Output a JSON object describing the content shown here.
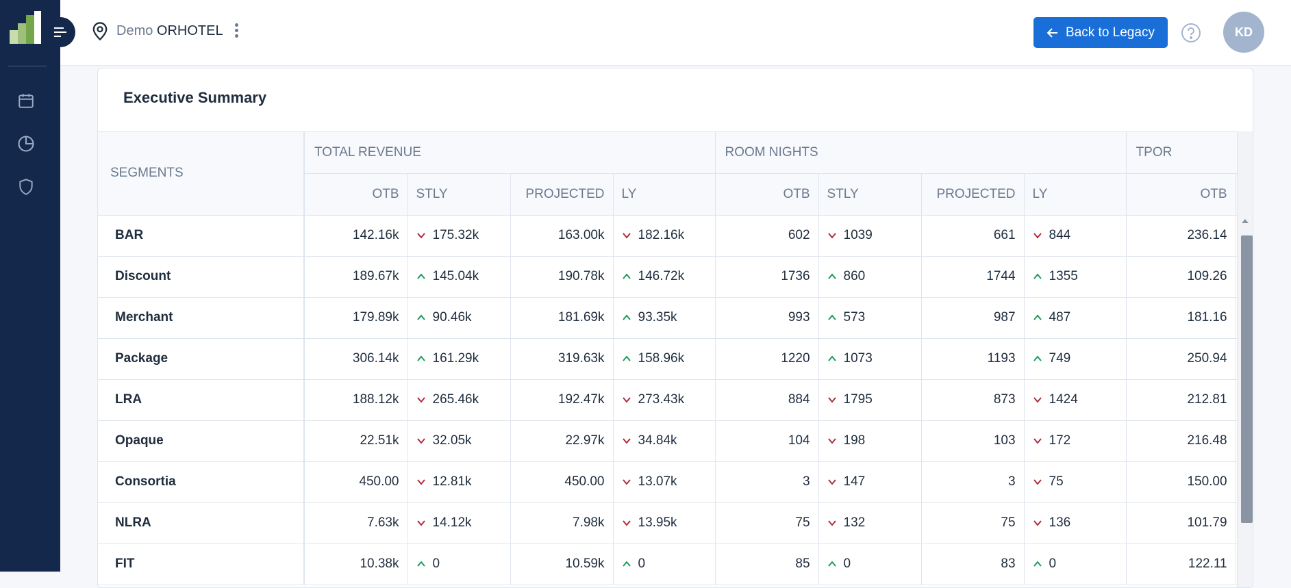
{
  "header": {
    "hotel_prefix": "Demo",
    "hotel_name": "ORHOTEL",
    "back_button_label": "Back to Legacy",
    "user_initials": "KD"
  },
  "sidebar": {
    "items": [
      {
        "icon": "calendar-icon"
      },
      {
        "icon": "pie-chart-icon"
      },
      {
        "icon": "shield-icon"
      }
    ]
  },
  "summary": {
    "title": "Executive Summary",
    "segments_header": "SEGMENTS",
    "groups": [
      "TOTAL REVENUE",
      "ROOM NIGHTS",
      "TPOR"
    ],
    "columns": [
      "OTB",
      "STLY",
      "PROJECTED",
      "LY",
      "OTB",
      "STLY",
      "PROJECTED",
      "LY",
      "OTB"
    ],
    "rows": [
      {
        "segment": "BAR",
        "rev_otb": "142.16k",
        "rev_stly": "175.32k",
        "rev_stly_dir": "down",
        "rev_proj": "163.00k",
        "rev_ly": "182.16k",
        "rev_ly_dir": "down",
        "rn_otb": "602",
        "rn_stly": "1039",
        "rn_stly_dir": "down",
        "rn_proj": "661",
        "rn_ly": "844",
        "rn_ly_dir": "down",
        "tpor_otb": "236.14"
      },
      {
        "segment": "Discount",
        "rev_otb": "189.67k",
        "rev_stly": "145.04k",
        "rev_stly_dir": "up",
        "rev_proj": "190.78k",
        "rev_ly": "146.72k",
        "rev_ly_dir": "up",
        "rn_otb": "1736",
        "rn_stly": "860",
        "rn_stly_dir": "up",
        "rn_proj": "1744",
        "rn_ly": "1355",
        "rn_ly_dir": "up",
        "tpor_otb": "109.26"
      },
      {
        "segment": "Merchant",
        "rev_otb": "179.89k",
        "rev_stly": "90.46k",
        "rev_stly_dir": "up",
        "rev_proj": "181.69k",
        "rev_ly": "93.35k",
        "rev_ly_dir": "up",
        "rn_otb": "993",
        "rn_stly": "573",
        "rn_stly_dir": "up",
        "rn_proj": "987",
        "rn_ly": "487",
        "rn_ly_dir": "up",
        "tpor_otb": "181.16"
      },
      {
        "segment": "Package",
        "rev_otb": "306.14k",
        "rev_stly": "161.29k",
        "rev_stly_dir": "up",
        "rev_proj": "319.63k",
        "rev_ly": "158.96k",
        "rev_ly_dir": "up",
        "rn_otb": "1220",
        "rn_stly": "1073",
        "rn_stly_dir": "up",
        "rn_proj": "1193",
        "rn_ly": "749",
        "rn_ly_dir": "up",
        "tpor_otb": "250.94"
      },
      {
        "segment": "LRA",
        "rev_otb": "188.12k",
        "rev_stly": "265.46k",
        "rev_stly_dir": "down",
        "rev_proj": "192.47k",
        "rev_ly": "273.43k",
        "rev_ly_dir": "down",
        "rn_otb": "884",
        "rn_stly": "1795",
        "rn_stly_dir": "down",
        "rn_proj": "873",
        "rn_ly": "1424",
        "rn_ly_dir": "down",
        "tpor_otb": "212.81"
      },
      {
        "segment": "Opaque",
        "rev_otb": "22.51k",
        "rev_stly": "32.05k",
        "rev_stly_dir": "down",
        "rev_proj": "22.97k",
        "rev_ly": "34.84k",
        "rev_ly_dir": "down",
        "rn_otb": "104",
        "rn_stly": "198",
        "rn_stly_dir": "down",
        "rn_proj": "103",
        "rn_ly": "172",
        "rn_ly_dir": "down",
        "tpor_otb": "216.48"
      },
      {
        "segment": "Consortia",
        "rev_otb": "450.00",
        "rev_stly": "12.81k",
        "rev_stly_dir": "down",
        "rev_proj": "450.00",
        "rev_ly": "13.07k",
        "rev_ly_dir": "down",
        "rn_otb": "3",
        "rn_stly": "147",
        "rn_stly_dir": "down",
        "rn_proj": "3",
        "rn_ly": "75",
        "rn_ly_dir": "down",
        "tpor_otb": "150.00"
      },
      {
        "segment": "NLRA",
        "rev_otb": "7.63k",
        "rev_stly": "14.12k",
        "rev_stly_dir": "down",
        "rev_proj": "7.98k",
        "rev_ly": "13.95k",
        "rev_ly_dir": "down",
        "rn_otb": "75",
        "rn_stly": "132",
        "rn_stly_dir": "down",
        "rn_proj": "75",
        "rn_ly": "136",
        "rn_ly_dir": "down",
        "tpor_otb": "101.79"
      },
      {
        "segment": "FIT",
        "rev_otb": "10.38k",
        "rev_stly": "0",
        "rev_stly_dir": "up",
        "rev_proj": "10.59k",
        "rev_ly": "0",
        "rev_ly_dir": "up",
        "rn_otb": "85",
        "rn_stly": "0",
        "rn_stly_dir": "up",
        "rn_proj": "83",
        "rn_ly": "0",
        "rn_ly_dir": "up",
        "tpor_otb": "122.11"
      }
    ]
  },
  "colors": {
    "sidebar_bg": "#14284b",
    "accent": "#1a6ed8",
    "trend_up": "#1a9a5c",
    "trend_down": "#b02a3a",
    "avatar_bg": "#a3b4cf"
  }
}
